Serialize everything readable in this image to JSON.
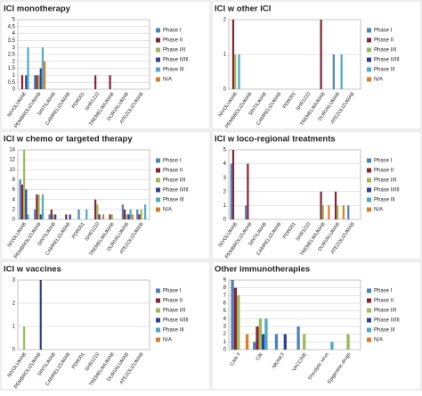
{
  "chart_data": [
    {
      "type": "bar",
      "title": "ICI monotherapy",
      "grid": true,
      "legend": "right",
      "categories": [
        "NIVOLUMAB",
        "PEMBROLIZUMAB",
        "SINTILIMAB",
        "CAMRELIZUMAB",
        "PDR001",
        "SHR1210",
        "TREMELIMUMAB",
        "DURVALUMAB",
        "ATEZOLIZUMAB"
      ],
      "ylim": [
        0,
        5
      ],
      "yticks": [
        0,
        {
          "value": 0.5,
          "label": "0,5"
        },
        1,
        {
          "value": 1.5,
          "label": "1,5"
        },
        2,
        {
          "value": 2.5,
          "label": "2,5"
        },
        3,
        {
          "value": 3.5,
          "label": "3,5"
        },
        4,
        {
          "value": 4.5,
          "label": "4,5"
        },
        5
      ],
      "series": [
        {
          "name": "Phase I",
          "color": "#4f81bd",
          "values": [
            0,
            1,
            0,
            0,
            0,
            0,
            0,
            0,
            0
          ]
        },
        {
          "name": "Phase II",
          "color": "#8b2232",
          "values": [
            1,
            1,
            0,
            0,
            0,
            1,
            1,
            0,
            0
          ]
        },
        {
          "name": "Phase I/II",
          "color": "#9bbb59",
          "values": [
            0,
            1,
            0,
            0,
            0,
            0,
            0,
            0,
            0
          ]
        },
        {
          "name": "Phase II/III",
          "color": "#2e3f9e",
          "values": [
            1,
            1.5,
            0,
            0,
            0,
            0,
            0,
            0,
            0
          ]
        },
        {
          "name": "Phase III",
          "color": "#4bacc6",
          "values": [
            3,
            3,
            0,
            0,
            0,
            0,
            0,
            0,
            0
          ]
        },
        {
          "name": "N/A",
          "color": "#e07b28",
          "values": [
            0,
            2,
            0,
            0,
            0,
            0,
            0,
            0,
            0
          ]
        }
      ]
    },
    {
      "type": "bar",
      "title": "ICI w other ICI",
      "grid": true,
      "legend": "right",
      "categories": [
        "NIVOLUMAB",
        "PEMBROLIZUMAB",
        "SINTILIMAB",
        "CAMRELIZUMAB",
        "PDR001",
        "SHR1210",
        "TREMELIMUMAB",
        "DURVALUMAB",
        "ATEZOLIZUMAB"
      ],
      "ylim": [
        0,
        2
      ],
      "yticks": [
        0,
        1,
        2
      ],
      "series": [
        {
          "name": "Phase I",
          "color": "#4f81bd",
          "values": [
            0,
            0,
            0,
            0,
            0,
            0,
            0,
            1,
            0
          ]
        },
        {
          "name": "Phase II",
          "color": "#8b2232",
          "values": [
            2,
            0,
            0,
            0,
            0,
            0,
            2,
            0,
            0
          ]
        },
        {
          "name": "Phase I/II",
          "color": "#9bbb59",
          "values": [
            1,
            0,
            0,
            0,
            0,
            0,
            0,
            0,
            0
          ]
        },
        {
          "name": "Phase II/III",
          "color": "#2e3f9e",
          "values": [
            0,
            0,
            0,
            0,
            0,
            0,
            0,
            0,
            0
          ]
        },
        {
          "name": "Phase III",
          "color": "#4bacc6",
          "values": [
            1,
            0,
            0,
            0,
            0,
            0,
            0,
            1,
            0
          ]
        },
        {
          "name": "N/A",
          "color": "#e07b28",
          "values": [
            0,
            0,
            0,
            0,
            0,
            0,
            0,
            0,
            0
          ]
        }
      ]
    },
    {
      "type": "bar",
      "title": "ICI w chemo or targeted therapy",
      "grid": true,
      "legend": "right",
      "categories": [
        "NIVOLUMAB",
        "PEMBROLIZUMAB",
        "SINTILIMAB",
        "CAMRELIZUMAB",
        "PDR001",
        "SHR1210",
        "TREMELIMUMAB",
        "DURVALUMAB",
        "ATEZOLIZUMAB"
      ],
      "ylim": [
        0,
        14
      ],
      "yticks": [
        0,
        2,
        4,
        6,
        8,
        10,
        12,
        14
      ],
      "series": [
        {
          "name": "Phase I",
          "color": "#4f81bd",
          "values": [
            8,
            2,
            1,
            0,
            2,
            0,
            0,
            3,
            2
          ]
        },
        {
          "name": "Phase II",
          "color": "#8b2232",
          "values": [
            7,
            5,
            2,
            1,
            0,
            4,
            1,
            2,
            1
          ]
        },
        {
          "name": "Phase I/II",
          "color": "#9bbb59",
          "values": [
            14,
            5,
            1,
            0,
            0,
            3,
            1,
            1,
            2
          ]
        },
        {
          "name": "Phase II/III",
          "color": "#2e3f9e",
          "values": [
            6,
            1,
            1,
            1,
            0,
            1,
            0,
            1,
            0
          ]
        },
        {
          "name": "Phase III",
          "color": "#4bacc6",
          "values": [
            1,
            5,
            0,
            0,
            2,
            0,
            0,
            2,
            3
          ]
        },
        {
          "name": "N/A",
          "color": "#e07b28",
          "values": [
            0,
            0,
            0,
            0,
            0,
            1,
            0,
            1,
            0
          ]
        }
      ]
    },
    {
      "type": "bar",
      "title": "ICI w loco-regional treatments",
      "grid": true,
      "legend": "right",
      "categories": [
        "NIVOLUMAB",
        "PEMBROLIZUMAB",
        "SINTILIMAB",
        "CAMRELIZUMAB",
        "PDR001",
        "SHR1210",
        "TREMELIMUMAB",
        "DURVALUMAB",
        "ATEZOLIZUMAB"
      ],
      "ylim": [
        0,
        5
      ],
      "yticks": [
        0,
        1,
        2,
        3,
        4,
        5
      ],
      "series": [
        {
          "name": "Phase I",
          "color": "#4f81bd",
          "values": [
            4,
            1,
            0,
            0,
            0,
            0,
            0,
            0,
            1
          ]
        },
        {
          "name": "Phase II",
          "color": "#8b2232",
          "values": [
            5,
            4,
            0,
            0,
            0,
            0,
            2,
            2,
            0
          ]
        },
        {
          "name": "Phase I/II",
          "color": "#9bbb59",
          "values": [
            0,
            0,
            0,
            0,
            0,
            0,
            1,
            1,
            0
          ]
        },
        {
          "name": "Phase II/III",
          "color": "#2e3f9e",
          "values": [
            0,
            0,
            0,
            0,
            0,
            0,
            0,
            0,
            0
          ]
        },
        {
          "name": "Phase III",
          "color": "#4bacc6",
          "values": [
            0,
            0,
            0,
            0,
            0,
            0,
            0,
            0,
            0
          ]
        },
        {
          "name": "N/A",
          "color": "#e07b28",
          "values": [
            0,
            0,
            0,
            0,
            0,
            0,
            1,
            1,
            0
          ]
        }
      ]
    },
    {
      "type": "bar",
      "title": "ICI w vaccines",
      "grid": true,
      "legend": "right",
      "categories": [
        "NIVOLUMAB",
        "PEMBROLIZUMAB",
        "SINTILIMAB",
        "CAMRELIZUMAB",
        "PDR001",
        "SHR1210",
        "TREMELIMUMAB",
        "DURVALUMAB",
        "ATEZOLIZUMAB"
      ],
      "ylim": [
        0,
        3
      ],
      "yticks": [
        0,
        1,
        2,
        3
      ],
      "series": [
        {
          "name": "Phase I",
          "color": "#4f81bd",
          "values": [
            0,
            0,
            0,
            0,
            0,
            0,
            0,
            0,
            0
          ]
        },
        {
          "name": "Phase II",
          "color": "#8b2232",
          "values": [
            0,
            0,
            0,
            0,
            0,
            0,
            0,
            0,
            0
          ]
        },
        {
          "name": "Phase I/II",
          "color": "#9bbb59",
          "values": [
            1,
            0,
            0,
            0,
            0,
            0,
            0,
            0,
            0
          ]
        },
        {
          "name": "Phase II/III",
          "color": "#2e3f9e",
          "values": [
            0,
            3,
            0,
            0,
            0,
            0,
            0,
            0,
            0
          ]
        },
        {
          "name": "Phase III",
          "color": "#4bacc6",
          "values": [
            0,
            0,
            0,
            0,
            0,
            0,
            0,
            0,
            0
          ]
        },
        {
          "name": "N/A",
          "color": "#e07b28",
          "values": [
            0,
            0,
            0,
            0,
            0,
            0,
            0,
            0,
            0
          ]
        }
      ]
    },
    {
      "type": "bar",
      "title": "Other immunotherapies",
      "grid": true,
      "legend": "right",
      "categories": [
        "CAR-T",
        "CIK",
        "NK/NKT",
        "VACCINE",
        "Oncolytic virus",
        "Epigenetic drugs"
      ],
      "ylim": [
        0,
        9
      ],
      "yticks": [
        0,
        1,
        2,
        3,
        4,
        5,
        6,
        7,
        8,
        9
      ],
      "series": [
        {
          "name": "Phase I",
          "color": "#4f81bd",
          "values": [
            9,
            1,
            2,
            3,
            0,
            0
          ]
        },
        {
          "name": "Phase II",
          "color": "#8b2232",
          "values": [
            8,
            3,
            0,
            0,
            0,
            0
          ]
        },
        {
          "name": "Phase I/II",
          "color": "#9bbb59",
          "values": [
            7,
            4,
            0,
            2,
            0,
            2
          ]
        },
        {
          "name": "Phase II/III",
          "color": "#2e3f9e",
          "values": [
            0,
            2,
            2,
            0,
            0,
            0
          ]
        },
        {
          "name": "Phase III",
          "color": "#4bacc6",
          "values": [
            0,
            4,
            0,
            0,
            1,
            0
          ]
        },
        {
          "name": "N/A",
          "color": "#e07b28",
          "values": [
            2,
            0,
            0,
            0,
            0,
            0
          ]
        }
      ]
    }
  ]
}
